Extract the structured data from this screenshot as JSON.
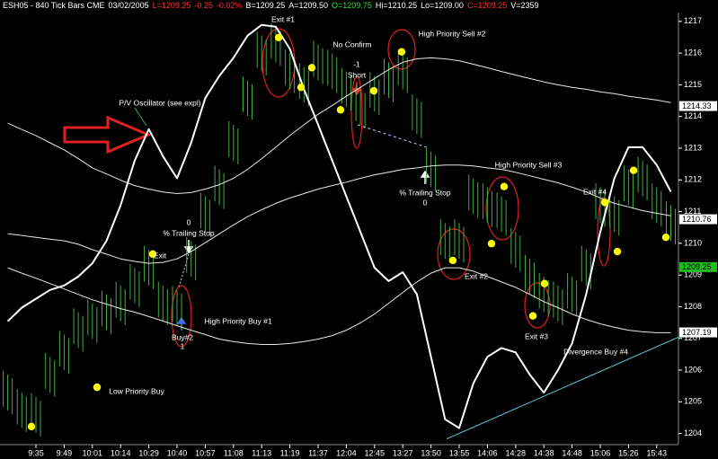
{
  "chart_data": {
    "type": "stock",
    "header": [
      {
        "text": "ESH05 - 840 Tick Bars CME",
        "color": "#ffffff"
      },
      {
        "text": "03/02/2005",
        "color": "#ffffff"
      },
      {
        "text": "L=1209.25",
        "color": "#ff3030"
      },
      {
        "text": "-0.25",
        "color": "#ff3030"
      },
      {
        "text": "-0.02%",
        "color": "#ff3030"
      },
      {
        "text": "B=1209.25",
        "color": "#ffffff"
      },
      {
        "text": "A=1209.50",
        "color": "#ffffff"
      },
      {
        "text": "O=1209.75",
        "color": "#33dd33"
      },
      {
        "text": "Hi=1210.25",
        "color": "#ffffff"
      },
      {
        "text": "Lo=1209.00",
        "color": "#ffffff"
      },
      {
        "text": "C=1209.25",
        "color": "#ff3030"
      },
      {
        "text": "V=2359",
        "color": "#ffffff"
      }
    ],
    "categories": [
      null,
      null,
      "9:35",
      null,
      "9:49",
      null,
      "10:01",
      null,
      "10:14",
      null,
      "10:29",
      null,
      "10:40",
      null,
      "10:57",
      null,
      "11:08",
      null,
      "11:13",
      null,
      "11:19",
      null,
      "11:37",
      null,
      "12:04",
      null,
      "12:45",
      null,
      "13:27",
      null,
      "13:50",
      null,
      "13:55",
      null,
      "14:06",
      null,
      "14:28",
      null,
      "14:38",
      null,
      "14:48",
      null,
      "15:06",
      null,
      "15:26",
      null,
      "15:43",
      null
    ],
    "bars": {
      "color": "#3fae3f",
      "high": [
        1205.86,
        1205.29,
        1205.15,
        1206.42,
        1207.12,
        1207.83,
        1208.11,
        1208.39,
        1208.67,
        1209.23,
        1209.8,
        1208.67,
        1208.53,
        1210.08,
        1211.48,
        1212.33,
        1213.74,
        1215.14,
        1216.55,
        1216.83,
        1215.99,
        1215.56,
        1216.27,
        1215.99,
        1215.42,
        1214.86,
        1215.28,
        1215.71,
        1215.99,
        1214.58,
        1212.89,
        1210.64,
        1210.64,
        1212.05,
        1211.77,
        1211.48,
        1210.36,
        1209.51,
        1208.95,
        1208.67,
        1208.95,
        1209.8,
        1211.77,
        1211.48,
        1212.33,
        1212.61,
        1211.77,
        1211.2
      ],
      "low": [
        1204.73,
        1204.17,
        1204.03,
        1205.29,
        1206.0,
        1206.7,
        1206.98,
        1207.26,
        1207.54,
        1208.11,
        1208.67,
        1207.54,
        1207.4,
        1208.95,
        1210.36,
        1211.2,
        1212.61,
        1214.02,
        1215.42,
        1215.71,
        1214.86,
        1214.44,
        1215.14,
        1214.86,
        1214.3,
        1213.74,
        1214.16,
        1214.58,
        1214.86,
        1213.45,
        1211.77,
        1209.51,
        1209.51,
        1210.92,
        1210.64,
        1210.36,
        1209.23,
        1208.39,
        1207.83,
        1207.54,
        1207.83,
        1208.67,
        1210.64,
        1210.36,
        1211.2,
        1211.48,
        1210.64,
        1210.08
      ]
    },
    "series": [
      {
        "color": "#ffffff",
        "width": 2,
        "values": [
          1207.54,
          1207.97,
          1208.25,
          1208.53,
          1208.67,
          1208.95,
          1209.37,
          1210.08,
          1211.2,
          1212.61,
          1213.6,
          1212.75,
          1212.05,
          1213.17,
          1214.58,
          1215.28,
          1215.85,
          1216.55,
          1216.89,
          1216.83,
          1216.13,
          1214.86,
          1213.74,
          1212.61,
          1211.48,
          1210.36,
          1209.23,
          1208.81,
          1209.09,
          1208.39,
          1206.42,
          1204.45,
          1204.17,
          1205.58,
          1206.42,
          1206.7,
          1206.56,
          1205.86,
          1205.29,
          1206.0,
          1206.84,
          1208.39,
          1210.36,
          1212.05,
          1213.03,
          1213.03,
          1212.47,
          1211.63
        ]
      },
      {
        "color": "#e8e8e8",
        "width": 1,
        "values": [
          1213.79,
          1213.59,
          1213.4,
          1213.17,
          1212.95,
          1212.67,
          1212.38,
          1212.19,
          1211.99,
          1211.82,
          1211.71,
          1211.62,
          1211.57,
          1211.6,
          1211.71,
          1211.85,
          1212.05,
          1212.33,
          1212.67,
          1213.03,
          1213.4,
          1213.74,
          1214.07,
          1214.35,
          1214.64,
          1214.92,
          1215.2,
          1215.48,
          1215.71,
          1215.82,
          1215.85,
          1215.82,
          1215.76,
          1215.65,
          1215.54,
          1215.42,
          1215.31,
          1215.2,
          1215.09,
          1215.0,
          1214.92,
          1214.86,
          1214.78,
          1214.72,
          1214.64,
          1214.58,
          1214.52,
          1214.44
        ]
      },
      {
        "color": "#e8e8e8",
        "width": 1,
        "values": [
          1210.3,
          1210.25,
          1210.19,
          1210.13,
          1210.08,
          1209.97,
          1209.8,
          1209.66,
          1209.51,
          1209.43,
          1209.37,
          1209.4,
          1209.51,
          1209.74,
          1210.02,
          1210.3,
          1210.58,
          1210.84,
          1211.06,
          1211.26,
          1211.43,
          1211.57,
          1211.71,
          1211.82,
          1211.93,
          1212.05,
          1212.16,
          1212.24,
          1212.33,
          1212.38,
          1212.44,
          1212.47,
          1212.47,
          1212.44,
          1212.38,
          1212.33,
          1212.24,
          1212.13,
          1212.02,
          1211.91,
          1211.77,
          1211.62,
          1211.43,
          1211.26,
          1211.15,
          1211.03,
          1210.95,
          1210.87
        ]
      },
      {
        "color": "#e8e8e8",
        "width": 1,
        "values": [
          1209.23,
          1209.06,
          1208.9,
          1208.73,
          1208.56,
          1208.39,
          1208.22,
          1208.08,
          1207.94,
          1207.83,
          1207.69,
          1207.55,
          1207.4,
          1207.26,
          1207.12,
          1206.98,
          1206.9,
          1206.84,
          1206.81,
          1206.81,
          1206.84,
          1206.9,
          1206.98,
          1207.09,
          1207.26,
          1207.49,
          1207.77,
          1208.11,
          1208.45,
          1208.78,
          1209.06,
          1209.23,
          1209.23,
          1209.12,
          1208.95,
          1208.78,
          1208.61,
          1208.39,
          1208.16,
          1207.97,
          1207.77,
          1207.6,
          1207.46,
          1207.35,
          1207.26,
          1207.21,
          1207.18,
          1207.18
        ]
      }
    ],
    "signals": {
      "color": "#ffff00",
      "x": [
        1.68,
        6.33,
        10.28,
        19.2,
        20.79,
        21.55,
        23.59,
        25.95,
        27.92,
        31.55,
        34.29,
        35.18,
        37.22,
        38.05,
        42.32,
        43.21,
        44.36,
        46.65
      ],
      "y": [
        1204.22,
        1205.46,
        1209.66,
        1216.49,
        1214.92,
        1215.54,
        1214.21,
        1214.81,
        1216.04,
        1209.46,
        1209.99,
        1211.79,
        1207.71,
        1208.73,
        1211.29,
        1209.74,
        1212.3,
        1210.19
      ]
    },
    "trendlines": [
      {
        "color": "#5fc8d8",
        "dash": false,
        "x": [
          31.11,
          47.54
        ],
        "y": [
          1203.83,
          1207.04
        ]
      },
      {
        "color": "#aad8ff",
        "dash": true,
        "x": [
          24.8,
          29.7
        ],
        "y": [
          1213.74,
          1213.03
        ]
      }
    ],
    "price_markers": [
      {
        "value": 1214.33,
        "color": "#ffffff"
      },
      {
        "value": 1210.76,
        "color": "#ffffff"
      },
      {
        "value": 1209.25,
        "color": "#22bb22"
      },
      {
        "value": 1207.19,
        "color": "#ffffff"
      }
    ],
    "annotations": [
      "Exit #1",
      "No Confirm",
      "-1",
      "Short",
      "High Priority Sell #2",
      "P/V Oscillator (see expl)",
      "0",
      "% Trailing Stop",
      "Exit",
      "High Priority Buy #1",
      "Buy#2",
      "1",
      "Low Priority Buy",
      "% Trailing Stop",
      "0",
      "High Priority Sell #3",
      "Exit #2",
      "Exit #4",
      "Exit #3",
      "Divergence Buy #4"
    ],
    "ylim": [
      1203.65,
      1217.675
    ],
    "yticks": [
      1204,
      1205,
      1206,
      1207,
      1208,
      1209,
      1210,
      1211,
      1212,
      1213,
      1214,
      1215,
      1216,
      1217
    ]
  }
}
